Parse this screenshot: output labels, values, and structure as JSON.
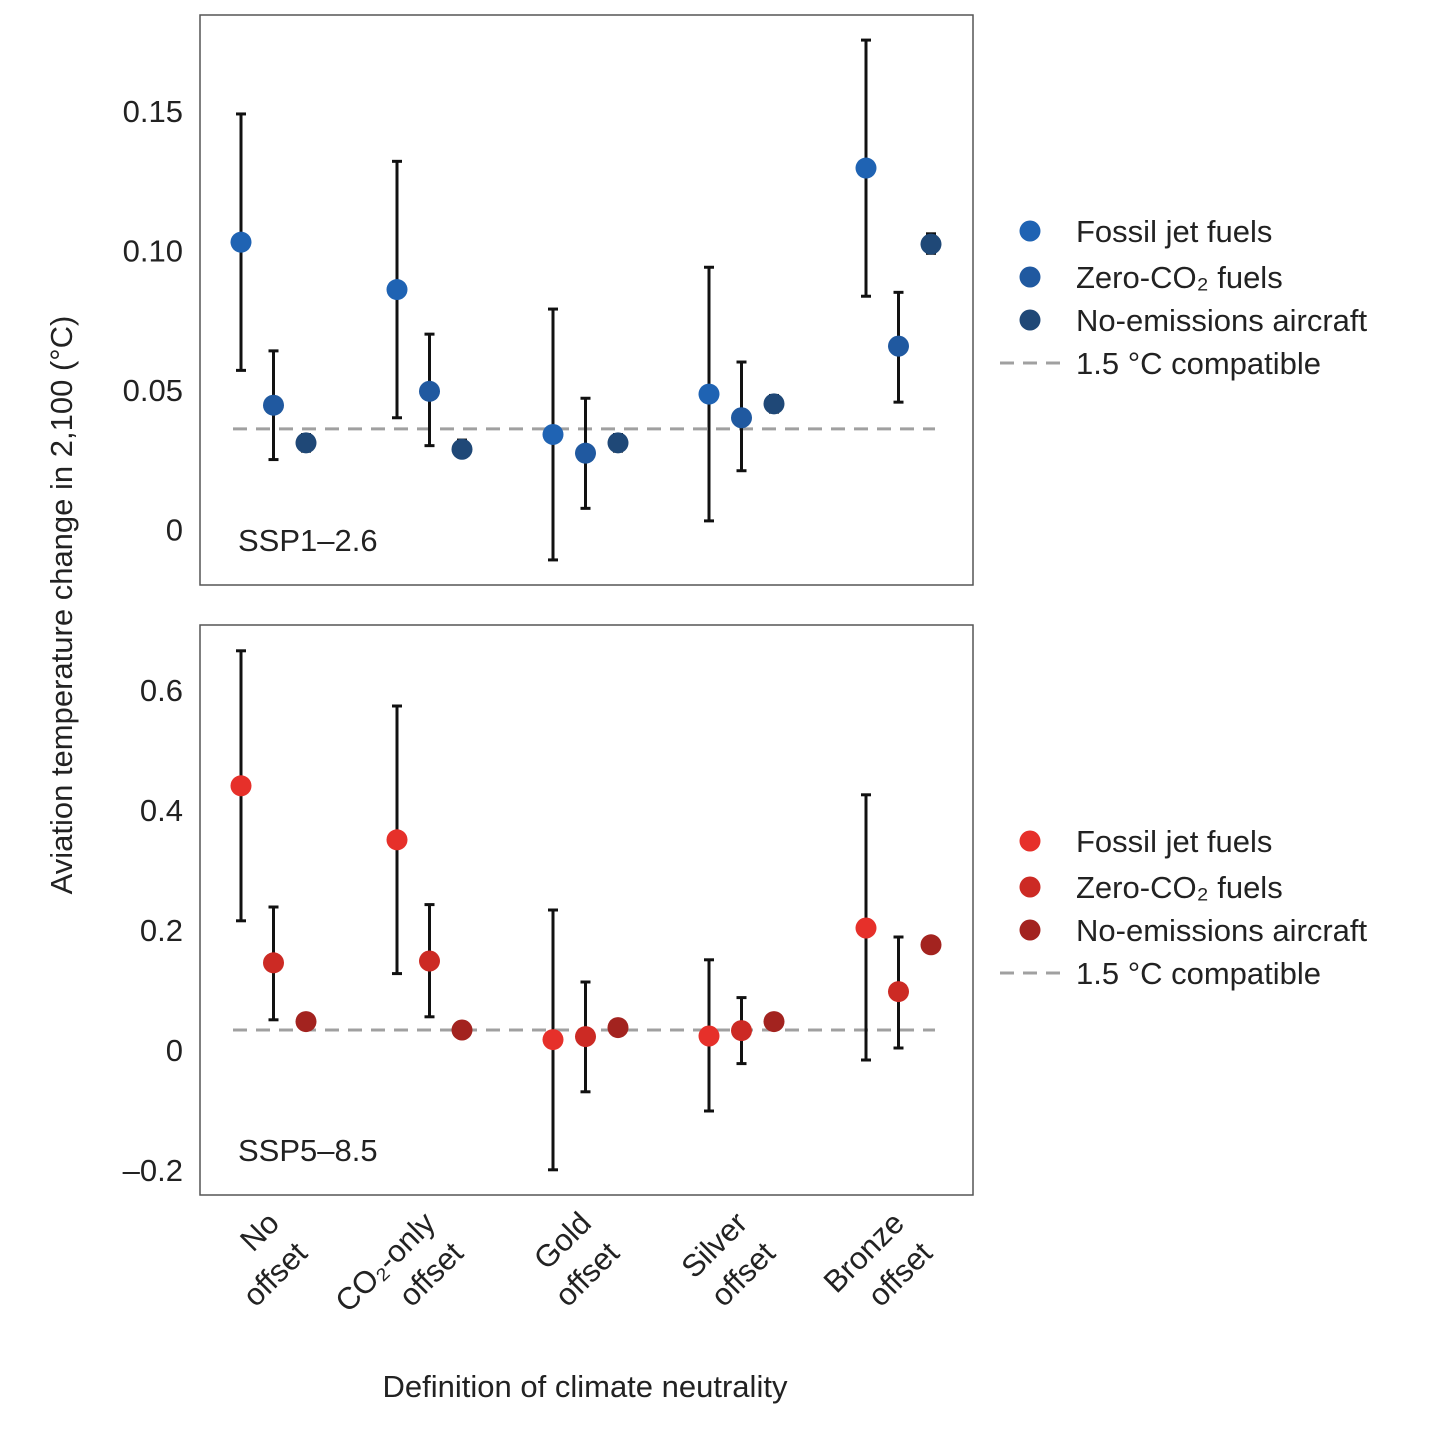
{
  "chart_data": [
    {
      "type": "scatter",
      "panel_label": "SSP1–2.6",
      "ylim": [
        -0.02,
        0.1845
      ],
      "yticks": [
        0,
        0.05,
        0.1,
        0.15
      ],
      "ytick_labels": [
        "0",
        "0.05",
        "0.10",
        "0.15"
      ],
      "grid": false,
      "reference_line": {
        "name": "1.5 °C compatible",
        "value": 0.036
      },
      "legend_position": "right",
      "series": [
        {
          "name": "Fossil jet fuels",
          "color": "#1f63b3",
          "values": [
            0.103,
            0.086,
            0.034,
            0.0485,
            0.1296
          ],
          "lower": [
            0.057,
            0.04,
            -0.011,
            0.003,
            0.0836
          ],
          "upper": [
            0.149,
            0.132,
            0.079,
            0.094,
            0.1755
          ]
        },
        {
          "name": "Zero-CO₂ fuels",
          "color": "#2059a0",
          "values": [
            0.0445,
            0.0495,
            0.0273,
            0.04,
            0.0657
          ],
          "lower": [
            0.025,
            0.03,
            0.0075,
            0.021,
            0.0456
          ],
          "upper": [
            0.064,
            0.07,
            0.047,
            0.06,
            0.085
          ]
        },
        {
          "name": "No-emissions aircraft",
          "color": "#1f4877",
          "values": [
            0.031,
            0.0287,
            0.031,
            0.045,
            0.1023
          ],
          "lower": [
            0.028,
            0.026,
            0.028,
            0.042,
            0.099
          ],
          "upper": [
            0.034,
            0.032,
            0.034,
            0.048,
            0.106
          ]
        }
      ]
    },
    {
      "type": "scatter",
      "panel_label": "SSP5–8.5",
      "ylim": [
        -0.242,
        0.708
      ],
      "yticks": [
        -0.2,
        0,
        0.2,
        0.4,
        0.6
      ],
      "ytick_labels": [
        "–0.2",
        "0",
        "0.2",
        "0.4",
        "0.6"
      ],
      "grid": false,
      "reference_line": {
        "name": "1.5 °C compatible",
        "value": 0.033
      },
      "legend_position": "right",
      "series": [
        {
          "name": "Fossil jet fuels",
          "color": "#e6302a",
          "values": [
            0.44,
            0.35,
            0.017,
            0.023,
            0.203
          ],
          "lower": [
            0.215,
            0.127,
            -0.2,
            -0.102,
            -0.017
          ],
          "upper": [
            0.665,
            0.573,
            0.233,
            0.15,
            0.425
          ]
        },
        {
          "name": "Zero-CO₂ fuels",
          "color": "#cc2a24",
          "values": [
            0.145,
            0.148,
            0.022,
            0.032,
            0.097
          ],
          "lower": [
            0.05,
            0.055,
            -0.07,
            -0.023,
            0.003
          ],
          "upper": [
            0.238,
            0.242,
            0.113,
            0.087,
            0.188
          ]
        },
        {
          "name": "No-emissions aircraft",
          "color": "#a3231f",
          "values": [
            0.047,
            0.033,
            0.037,
            0.047,
            0.175
          ],
          "lower": [
            0.047,
            0.033,
            0.037,
            0.047,
            0.175
          ],
          "upper": [
            0.047,
            0.033,
            0.037,
            0.047,
            0.175
          ]
        }
      ]
    }
  ],
  "categories": [
    [
      "No",
      "offset"
    ],
    [
      "CO₂-only",
      "offset"
    ],
    [
      "Gold",
      "offset"
    ],
    [
      "Silver",
      "offset"
    ],
    [
      "Bronze",
      "offset"
    ]
  ],
  "ylabel": "Aviation temperature change in 2,100 (°C)",
  "xlabel": "Definition of climate neutrality",
  "reference_color": "#a0a0a0"
}
